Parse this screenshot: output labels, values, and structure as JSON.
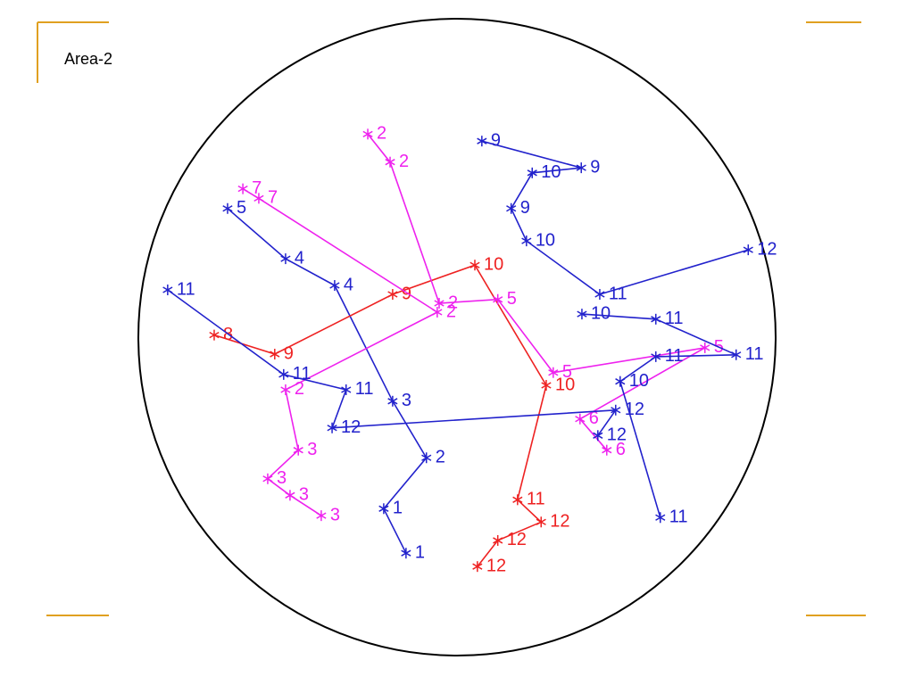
{
  "chart_data": {
    "type": "track",
    "title": "Area-2",
    "xlim": [
      0,
      100
    ],
    "ylim": [
      0,
      100
    ],
    "series": [
      {
        "color": "#2222cc",
        "x": [
          53.9,
          69.5,
          61.8,
          58.5,
          60.9,
          72.4,
          95.7
        ],
        "values": [
          80.9,
          76.7,
          75.9,
          70.3,
          65.2,
          56.8,
          63.8
        ],
        "labels": [
          9,
          9,
          10,
          9,
          10,
          11,
          12
        ]
      },
      {
        "color": "#2222cc",
        "x": [
          14.0,
          23.1,
          30.8,
          39.9,
          45.2,
          38.5,
          42.0
        ],
        "values": [
          70.3,
          62.4,
          58.2,
          40.0,
          31.1,
          23.1,
          16.1
        ],
        "labels": [
          5,
          4,
          4,
          3,
          2,
          1,
          1
        ]
      },
      {
        "color": "#ee2222",
        "x": [
          11.9,
          21.4,
          39.9,
          52.8,
          64.0,
          59.5,
          63.2,
          56.4,
          53.2
        ],
        "values": [
          50.4,
          47.4,
          56.8,
          61.4,
          42.5,
          24.5,
          21.0,
          18.1,
          14.0
        ],
        "labels": [
          8,
          9,
          9,
          10,
          10,
          11,
          12,
          12,
          12
        ]
      },
      {
        "color": "#ee22ee",
        "x": [
          16.4,
          18.9,
          46.9,
          23.1,
          25.1,
          20.3,
          23.8,
          28.7
        ],
        "values": [
          73.4,
          71.9,
          54.0,
          41.8,
          32.3,
          27.8,
          25.2,
          22.0
        ],
        "labels": [
          7,
          7,
          2,
          2,
          3,
          3,
          3,
          3
        ]
      },
      {
        "color": "#ee22ee",
        "x": [
          36.0,
          39.5,
          47.2,
          56.4,
          65.1,
          88.9,
          69.3,
          73.5
        ],
        "values": [
          82.0,
          77.6,
          55.4,
          56.0,
          44.5,
          48.4,
          37.2,
          32.3
        ],
        "labels": [
          2,
          2,
          2,
          5,
          5,
          5,
          6,
          6
        ]
      },
      {
        "color": "#2222cc",
        "x": [
          4.6,
          22.8,
          32.6,
          30.4,
          74.9,
          72.1
        ],
        "values": [
          57.5,
          44.2,
          41.8,
          35.8,
          38.6,
          34.6
        ],
        "labels": [
          11,
          11,
          11,
          12,
          12,
          12
        ]
      },
      {
        "color": "#2222cc",
        "x": [
          69.6,
          81.2,
          93.8,
          81.2,
          75.6,
          81.9
        ],
        "values": [
          53.7,
          52.9,
          47.3,
          47.0,
          43.1,
          21.7
        ],
        "labels": [
          10,
          11,
          11,
          11,
          10,
          11
        ]
      }
    ]
  }
}
